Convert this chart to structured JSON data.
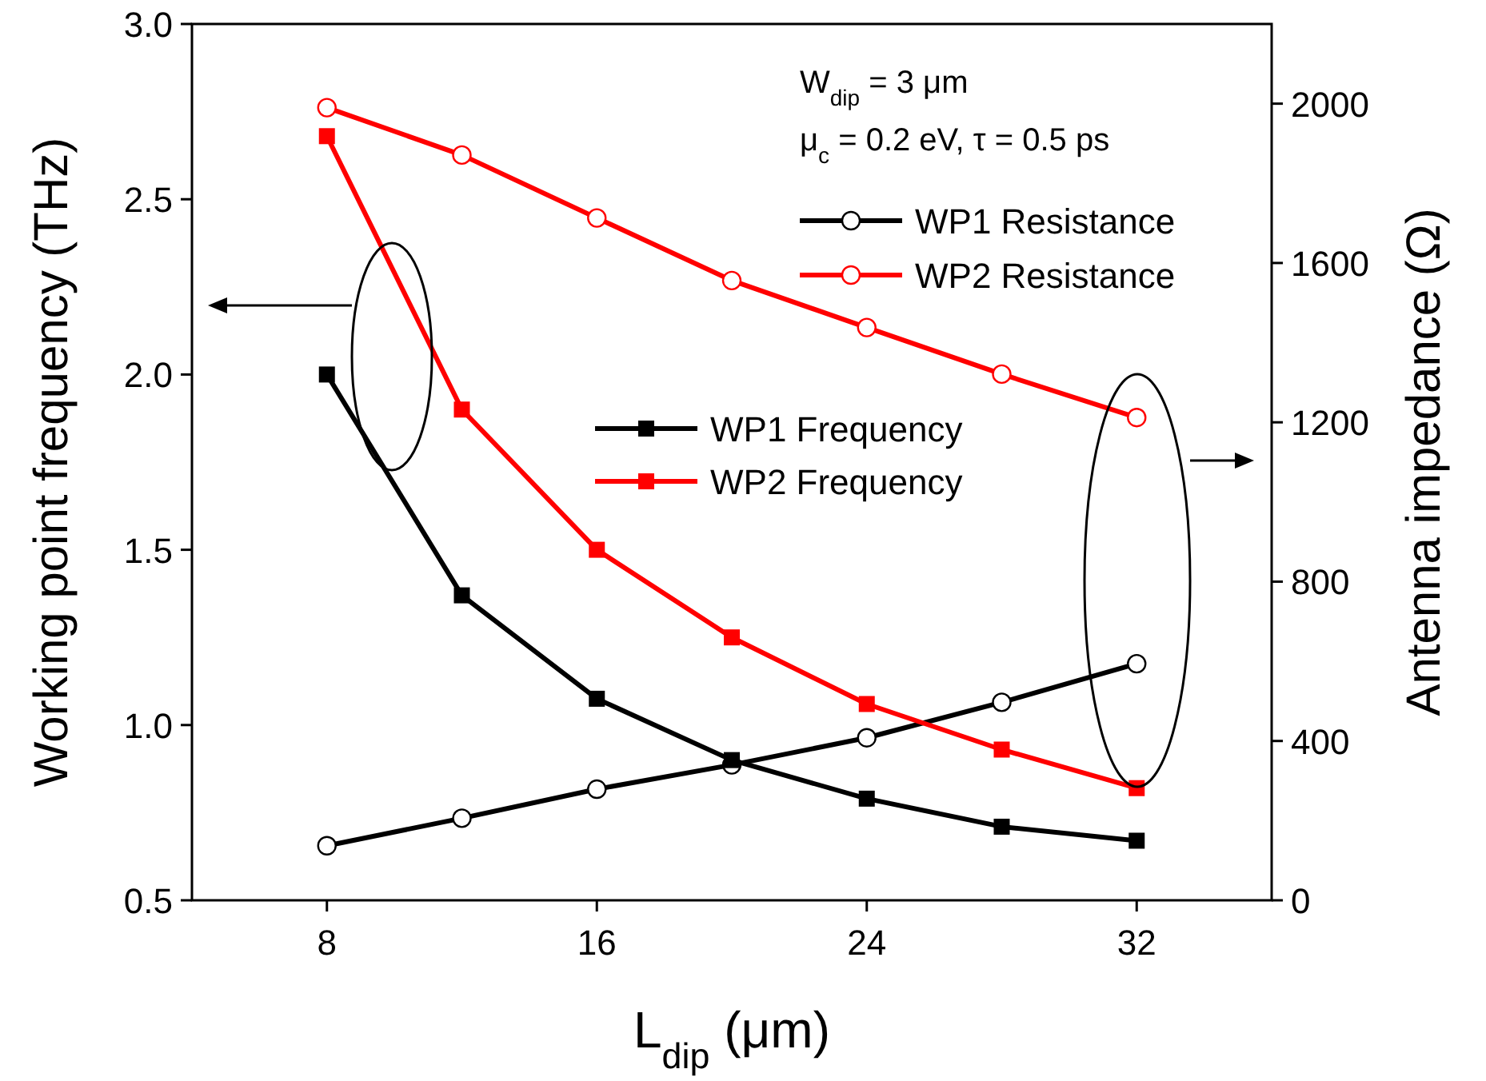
{
  "chart_data": {
    "type": "line",
    "xlabel": "L$_{dip}$ (μm)",
    "ylabel": "Working point frequency (THz)",
    "y2label": "Antenna impedance (Ω)",
    "x": [
      8,
      12,
      16,
      20,
      24,
      28,
      32
    ],
    "xlim": [
      4,
      36
    ],
    "xticks": [
      8,
      16,
      24,
      32
    ],
    "ylim": [
      0.5,
      3.0
    ],
    "yticks": [
      {
        "value": 0.5,
        "label": "0.5"
      },
      {
        "value": 1.0,
        "label": "1.0"
      },
      {
        "value": 1.5,
        "label": "1.5"
      },
      {
        "value": 2.0,
        "label": "2.0"
      },
      {
        "value": 2.5,
        "label": "2.5"
      },
      {
        "value": 3.0,
        "label": "3.0"
      }
    ],
    "y2lim": [
      0,
      2200
    ],
    "y2ticks": [
      0,
      400,
      800,
      1200,
      1600,
      2000
    ],
    "series": [
      {
        "name": "WP1 Resistance",
        "color": "#000000",
        "axis": "y2",
        "marker": "circle",
        "values": [
          137,
          206,
          279,
          340,
          408,
          497,
          594
        ]
      },
      {
        "name": "WP2 Resistance",
        "color": "#ff0000",
        "axis": "y2",
        "marker": "circle",
        "values": [
          1990,
          1871,
          1713,
          1556,
          1438,
          1321,
          1212
        ]
      },
      {
        "name": "WP1 Frequency",
        "color": "#000000",
        "marker": "square",
        "values": [
          2.0,
          1.37,
          1.075,
          0.9,
          0.79,
          0.71,
          0.67
        ]
      },
      {
        "name": "WP2 Frequency",
        "color": "#ff0000",
        "marker": "square",
        "values": [
          2.68,
          1.9,
          1.5,
          1.25,
          1.06,
          0.93,
          0.82
        ]
      }
    ],
    "annotations": [
      "W$_{dip}$ = 3 μm",
      "μ$_{c}$ = 0.2 eV, τ = 0.5 ps"
    ],
    "legend": "top right",
    "grid": false,
    "line_style": "solid"
  }
}
